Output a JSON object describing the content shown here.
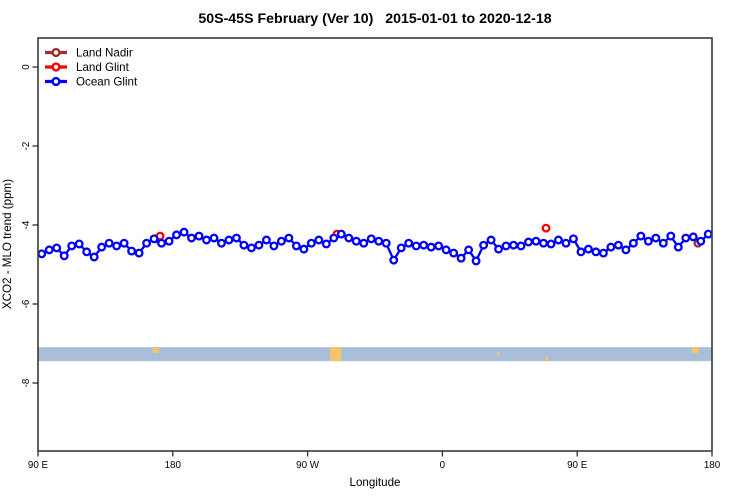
{
  "figure": {
    "title": "50S-45S February (Ver 10)   2015-01-01 to 2020-12-18",
    "xlabel": "Longitude",
    "ylabel": "XCO2 - MLO trend (ppm)"
  },
  "legend": {
    "items": [
      {
        "label": "Land Nadir",
        "color": "#9e2f2f"
      },
      {
        "label": "Land Glint",
        "color": "#ff0000"
      },
      {
        "label": "Ocean Glint",
        "color": "#0000ff"
      }
    ]
  },
  "chart_data": {
    "type": "line",
    "title": "50S-45S February (Ver 10)   2015-01-01 to 2020-12-18",
    "xlabel": "Longitude",
    "ylabel": "XCO2 - MLO trend (ppm)",
    "x_axis": {
      "note": "longitude axis wraps: 90E -> 180 -> 90W -> 0 -> 90E -> 180; deg = degrees from left edge (450 total)",
      "range_deg": [
        0,
        450
      ],
      "ticks": [
        {
          "deg": 0,
          "label": "90 E"
        },
        {
          "deg": 90,
          "label": "180"
        },
        {
          "deg": 180,
          "label": "90 W"
        },
        {
          "deg": 270,
          "label": "0"
        },
        {
          "deg": 360,
          "label": "90 E"
        },
        {
          "deg": 450,
          "label": "180"
        }
      ]
    },
    "y_axis": {
      "ticks": [
        0,
        -2,
        -4,
        -6,
        -8
      ],
      "range": [
        -9.7,
        0.73
      ],
      "grid": false
    },
    "legend_position": "top-left",
    "series": [
      {
        "name": "Ocean Glint",
        "color": "#0000ff",
        "marker": "open-circle",
        "x_deg": [
          2.5,
          7.5,
          12.5,
          17.5,
          22.5,
          27.5,
          32.5,
          37.5,
          42.5,
          47.5,
          52.5,
          57.5,
          62.5,
          67.5,
          72.5,
          77.5,
          82.5,
          87.5,
          92.5,
          97.5,
          102.5,
          107.5,
          112.5,
          117.5,
          122.5,
          127.5,
          132.5,
          137.5,
          142.5,
          147.5,
          152.5,
          157.5,
          162.5,
          167.5,
          172.5,
          177.5,
          182.5,
          187.5,
          192.5,
          197.5,
          202.5,
          207.5,
          212.5,
          217.5,
          222.5,
          227.5,
          232.5,
          237.5,
          242.5,
          247.5,
          252.5,
          257.5,
          262.5,
          267.5,
          272.5,
          277.5,
          282.5,
          287.5,
          292.5,
          297.5,
          302.5,
          307.5,
          312.5,
          317.5,
          322.5,
          327.5,
          332.5,
          337.5,
          342.5,
          347.5,
          352.5,
          357.5,
          362.5,
          367.5,
          372.5,
          377.5,
          382.5,
          387.5,
          392.5,
          397.5,
          402.5,
          407.5,
          412.5,
          417.5,
          422.5,
          427.5,
          432.5,
          437.5,
          442.5,
          447.5
        ],
        "values": [
          -4.73,
          -4.63,
          -4.58,
          -4.78,
          -4.53,
          -4.48,
          -4.68,
          -4.81,
          -4.56,
          -4.46,
          -4.53,
          -4.46,
          -4.66,
          -4.71,
          -4.46,
          -4.35,
          -4.46,
          -4.41,
          -4.25,
          -4.18,
          -4.33,
          -4.28,
          -4.38,
          -4.33,
          -4.46,
          -4.38,
          -4.33,
          -4.51,
          -4.58,
          -4.51,
          -4.38,
          -4.53,
          -4.41,
          -4.33,
          -4.53,
          -4.61,
          -4.46,
          -4.38,
          -4.48,
          -4.33,
          -4.23,
          -4.33,
          -4.41,
          -4.46,
          -4.35,
          -4.41,
          -4.46,
          -4.89,
          -4.58,
          -4.46,
          -4.53,
          -4.51,
          -4.56,
          -4.53,
          -4.63,
          -4.71,
          -4.84,
          -4.63,
          -4.91,
          -4.51,
          -4.38,
          -4.61,
          -4.53,
          -4.51,
          -4.53,
          -4.43,
          -4.41,
          -4.46,
          -4.48,
          -4.38,
          -4.46,
          -4.35,
          -4.68,
          -4.61,
          -4.68,
          -4.71,
          -4.56,
          -4.51,
          -4.63,
          -4.46,
          -4.28,
          -4.41,
          -4.33,
          -4.46,
          -4.28,
          -4.56,
          -4.33,
          -4.3,
          -4.41,
          -4.23
        ]
      },
      {
        "name": "Land Glint",
        "color": "#ff0000",
        "marker": "open-circle",
        "points": [
          {
            "x_deg": 81.5,
            "value": -4.28
          },
          {
            "x_deg": 199.6,
            "value": -4.23
          },
          {
            "x_deg": 339.2,
            "value": -4.08
          }
        ]
      },
      {
        "name": "Land Nadir",
        "color": "#9e2f2f",
        "marker": "open-circle",
        "points": [
          {
            "x_deg": 78.8,
            "value": -4.35
          },
          {
            "x_deg": 440.6,
            "value": -4.46
          }
        ]
      }
    ],
    "surface_band": {
      "note": "horizontal strip marking surface type: light blue = ocean, orange = land",
      "color": "#a9bed9",
      "land_color": "#f6c468",
      "value": -7.27,
      "land_marks_deg": [
        {
          "from": 76.5,
          "to": 80.5,
          "align": "top",
          "h": 6
        },
        {
          "from": 195.0,
          "to": 202.5,
          "align": "full",
          "h": 14
        },
        {
          "from": 306.6,
          "to": 308.2,
          "align": "mid",
          "h": 3
        },
        {
          "from": 338.6,
          "to": 340.6,
          "align": "bottom",
          "h": 4
        },
        {
          "from": 436.5,
          "to": 441.0,
          "align": "top",
          "h": 6
        }
      ]
    }
  }
}
